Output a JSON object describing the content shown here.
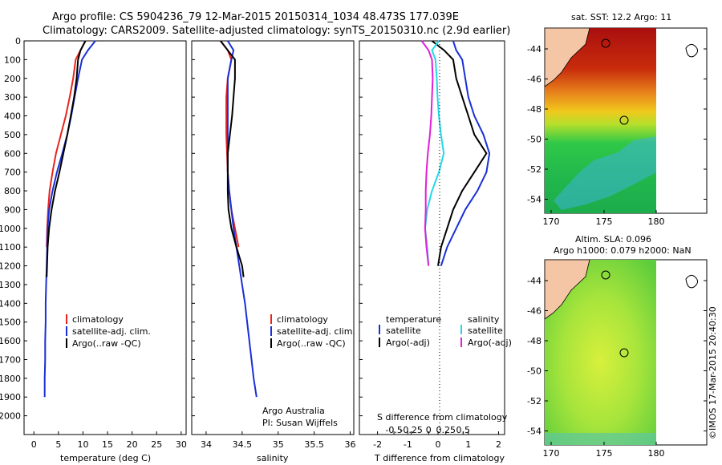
{
  "header": {
    "line1": "Argo profile: CS 5904236_79 12-Mar-2015 20150314_1034 48.473S 177.039E",
    "line2": "Climatology: CARS2009. Satellite-adjusted climatology: synTS_20150310.nc (2.9d earlier)"
  },
  "colors": {
    "climatology": "#e8241c",
    "satellite": "#1a2fd6",
    "argo": "#000000",
    "salinity_sat": "#22d8e8",
    "salinity_argo": "#e020d8",
    "land": "#f5c6a5"
  },
  "depth_ticks": [
    "0",
    "100",
    "200",
    "300",
    "400",
    "500",
    "600",
    "700",
    "800",
    "900",
    "1000",
    "1100",
    "1200",
    "1300",
    "1400",
    "1500",
    "1600",
    "1700",
    "1800",
    "1900",
    "2000"
  ],
  "legend": {
    "climatology": "climatology",
    "satellite": "satellite-adj. clim.",
    "argo": "Argo(..raw -QC)"
  },
  "credit": {
    "line1": "Argo Australia",
    "line2": "PI: Susan Wijffels"
  },
  "diff_legend": {
    "temperature": "temperature",
    "salinity": "salinity",
    "sat_t": "satellite",
    "argo_t": "Argo(-adj)",
    "sat_s": "satellite",
    "argo_s": "Argo(-adj)"
  },
  "diff_axes": {
    "s_label": "S difference from climatology",
    "s_ticks": [
      "-0.5",
      "-0.25",
      "0",
      "0.25",
      "0.5"
    ],
    "t_label": "T difference from climatology",
    "t_ticks": [
      "-2",
      "-1",
      "0",
      "1",
      "2"
    ]
  },
  "map1": {
    "title": "sat. SST: 12.2  Argo: 11"
  },
  "map2": {
    "title1": "Altim. SLA: 0.096",
    "title2": "Argo h1000: 0.079 h2000: NaN"
  },
  "map_lat_ticks": [
    "-44",
    "-46",
    "-48",
    "-50",
    "-52",
    "-54"
  ],
  "map_lon_ticks": [
    "170",
    "175",
    "180"
  ],
  "timestamp": "©IMOS 17-Mar-2015 20:40:30",
  "chart_data": [
    {
      "type": "line",
      "xlabel": "temperature (deg C)",
      "xticks": [
        "0",
        "5",
        "10",
        "15",
        "20",
        "25",
        "30"
      ],
      "xlim": [
        -2,
        31
      ],
      "ylim": [
        0,
        2100
      ],
      "ylabel": "",
      "series": [
        {
          "name": "climatology",
          "x": [
            10.5,
            9.5,
            8.5,
            8.0,
            7.3,
            6.5,
            5.5,
            4.5,
            3.8,
            3.2,
            2.9,
            2.7,
            2.6
          ],
          "y": [
            0,
            50,
            100,
            200,
            300,
            400,
            500,
            600,
            700,
            800,
            900,
            1000,
            1100
          ]
        },
        {
          "name": "satellite-adj. clim.",
          "x": [
            12.5,
            11.0,
            9.8,
            9.0,
            8.3,
            7.6,
            6.8,
            5.8,
            4.7,
            3.8,
            3.1,
            2.8,
            2.7,
            2.6,
            2.5,
            2.4,
            2.4,
            2.3,
            2.3,
            2.2,
            2.2
          ],
          "y": [
            0,
            50,
            100,
            200,
            300,
            400,
            500,
            600,
            700,
            800,
            900,
            1000,
            1100,
            1200,
            1300,
            1400,
            1500,
            1600,
            1700,
            1800,
            1900
          ]
        },
        {
          "name": "Argo(..raw -QC)",
          "x": [
            10.5,
            9.5,
            9.0,
            8.7,
            8.2,
            7.5,
            6.8,
            6.0,
            5.2,
            4.3,
            3.6,
            3.1,
            2.8,
            2.6
          ],
          "y": [
            0,
            50,
            100,
            200,
            300,
            400,
            500,
            600,
            700,
            800,
            900,
            1000,
            1100,
            1260
          ]
        }
      ]
    },
    {
      "type": "line",
      "xlabel": "salinity",
      "xticks": [
        "34",
        "34.5",
        "35",
        "35.5",
        "36"
      ],
      "xlim": [
        33.8,
        36.05
      ],
      "ylim": [
        0,
        2100
      ],
      "ylabel": "",
      "series": [
        {
          "name": "climatology",
          "x": [
            34.2,
            34.3,
            34.35,
            34.3,
            34.28,
            34.28,
            34.28,
            34.29,
            34.3,
            34.32,
            34.35,
            34.4,
            34.45
          ],
          "y": [
            0,
            50,
            100,
            200,
            300,
            400,
            500,
            600,
            700,
            800,
            900,
            1000,
            1100
          ]
        },
        {
          "name": "satellite-adj. clim.",
          "x": [
            34.3,
            34.38,
            34.35,
            34.3,
            34.3,
            34.3,
            34.3,
            34.3,
            34.3,
            34.32,
            34.35,
            34.38,
            34.42,
            34.46,
            34.5,
            34.54,
            34.57,
            34.6,
            34.63,
            34.66,
            34.7
          ],
          "y": [
            0,
            50,
            100,
            200,
            300,
            400,
            500,
            600,
            700,
            800,
            900,
            1000,
            1100,
            1200,
            1300,
            1400,
            1500,
            1600,
            1700,
            1800,
            1900
          ]
        },
        {
          "name": "Argo(..raw -QC)",
          "x": [
            34.2,
            34.3,
            34.4,
            34.4,
            34.38,
            34.36,
            34.33,
            34.3,
            34.3,
            34.3,
            34.31,
            34.35,
            34.42,
            34.5,
            34.52
          ],
          "y": [
            0,
            50,
            100,
            200,
            300,
            400,
            500,
            600,
            700,
            800,
            900,
            1000,
            1100,
            1200,
            1260
          ]
        }
      ]
    },
    {
      "type": "line",
      "xlabel": "T difference from climatology",
      "xticks": [
        "-2",
        "-1",
        "0",
        "1",
        "2"
      ],
      "xlim": [
        -2.6,
        2.2
      ],
      "ylim": [
        0,
        2100
      ],
      "ylabel": "",
      "series": [
        {
          "name": "satellite",
          "x": [
            0.5,
            0.6,
            0.8,
            0.9,
            1.0,
            1.2,
            1.5,
            1.7,
            1.6,
            1.3,
            0.9,
            0.6,
            0.3,
            0.1
          ],
          "y": [
            0,
            50,
            100,
            200,
            300,
            400,
            500,
            600,
            700,
            800,
            900,
            1000,
            1100,
            1200
          ]
        },
        {
          "name": "Argo(-adj)",
          "x": [
            -0.2,
            0.2,
            0.5,
            0.6,
            0.8,
            1.0,
            1.2,
            1.6,
            1.2,
            0.8,
            0.5,
            0.3,
            0.1,
            0.0
          ],
          "y": [
            0,
            50,
            100,
            200,
            300,
            400,
            500,
            600,
            700,
            800,
            900,
            1000,
            1100,
            1200
          ]
        }
      ]
    },
    {
      "type": "line",
      "xlabel": "S difference from climatology",
      "xticks": [
        "-0.5",
        "-0.25",
        "0",
        "0.25",
        "0.5"
      ],
      "xlim": [
        -1.0,
        1.1
      ],
      "ylim": [
        0,
        2100
      ],
      "ylabel": "",
      "series": [
        {
          "name": "satellite",
          "x": [
            0.15,
            0.05,
            0.1,
            0.12,
            0.13,
            0.15,
            0.18,
            0.22,
            0.15,
            0.05,
            -0.02,
            -0.05,
            -0.02,
            0.0
          ],
          "y": [
            0,
            50,
            100,
            200,
            300,
            400,
            500,
            600,
            700,
            800,
            900,
            1000,
            1100,
            1200
          ]
        },
        {
          "name": "Argo(-adj)",
          "x": [
            -0.1,
            0.0,
            0.05,
            0.06,
            0.05,
            0.04,
            0.02,
            -0.01,
            -0.03,
            -0.04,
            -0.04,
            -0.05,
            -0.03,
            0.0
          ],
          "y": [
            0,
            50,
            100,
            200,
            300,
            400,
            500,
            600,
            700,
            800,
            900,
            1000,
            1100,
            1200
          ]
        }
      ]
    }
  ]
}
